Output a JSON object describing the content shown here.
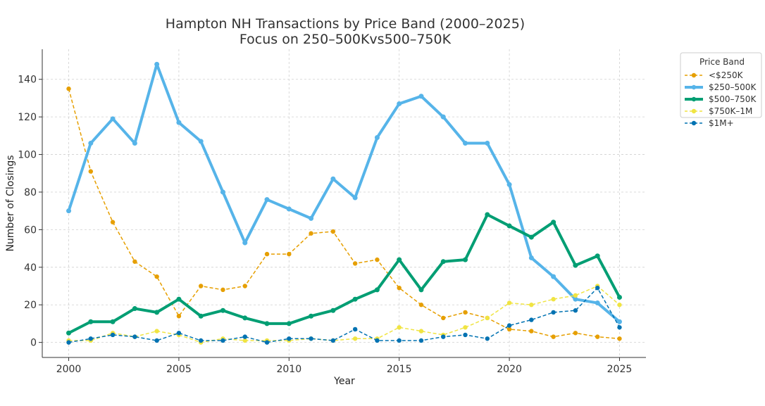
{
  "chart_data": {
    "type": "line",
    "title_line1": "Hampton NH Transactions by Price Band (2000–2025)",
    "title_line2": "Focus on 250–500Kvs500–750K",
    "xlabel": "Year",
    "ylabel": "Number of Closings",
    "xlim": [
      1998.8,
      2026.2
    ],
    "ylim": [
      -8,
      156
    ],
    "xticks": [
      2000,
      2005,
      2010,
      2015,
      2020,
      2025
    ],
    "yticks": [
      0,
      20,
      40,
      60,
      80,
      100,
      120,
      140
    ],
    "grid": true,
    "legend": {
      "title": "Price Band",
      "position": "outside-top-right"
    },
    "x": [
      2000,
      2001,
      2002,
      2003,
      2004,
      2005,
      2006,
      2007,
      2008,
      2009,
      2010,
      2011,
      2012,
      2013,
      2014,
      2015,
      2016,
      2017,
      2018,
      2019,
      2020,
      2021,
      2022,
      2023,
      2024,
      2025
    ],
    "series": [
      {
        "name": "<$250K",
        "color": "#E69F00",
        "style": "dashed",
        "width": 1.5,
        "values": [
          135,
          91,
          64,
          43,
          35,
          14,
          30,
          28,
          30,
          47,
          47,
          58,
          59,
          42,
          44,
          29,
          20,
          13,
          16,
          13,
          7,
          6,
          3,
          5,
          3,
          2
        ]
      },
      {
        "name": "$250–500K",
        "color": "#56B4E9",
        "style": "solid",
        "width": 4,
        "values": [
          70,
          106,
          119,
          106,
          148,
          117,
          107,
          80,
          53,
          76,
          71,
          66,
          87,
          77,
          109,
          127,
          131,
          120,
          106,
          106,
          84,
          45,
          35,
          23,
          21,
          11
        ]
      },
      {
        "name": "$500–750K",
        "color": "#009E73",
        "style": "solid",
        "width": 4,
        "values": [
          5,
          11,
          11,
          18,
          16,
          23,
          14,
          17,
          13,
          10,
          10,
          14,
          17,
          23,
          28,
          44,
          28,
          43,
          44,
          68,
          62,
          56,
          64,
          41,
          46,
          24
        ]
      },
      {
        "name": "$750K–1M",
        "color": "#F0E442",
        "style": "dashed",
        "width": 1.5,
        "values": [
          1,
          1,
          5,
          3,
          6,
          4,
          0,
          2,
          1,
          1,
          1,
          2,
          1,
          2,
          2,
          8,
          6,
          4,
          8,
          13,
          21,
          20,
          23,
          25,
          30,
          20
        ]
      },
      {
        "name": "$1M+",
        "color": "#0072B2",
        "style": "dashed",
        "width": 1.5,
        "values": [
          0,
          2,
          4,
          3,
          1,
          5,
          1,
          1,
          3,
          0,
          2,
          2,
          1,
          7,
          1,
          1,
          1,
          3,
          4,
          2,
          9,
          12,
          16,
          17,
          29,
          8
        ]
      }
    ]
  }
}
